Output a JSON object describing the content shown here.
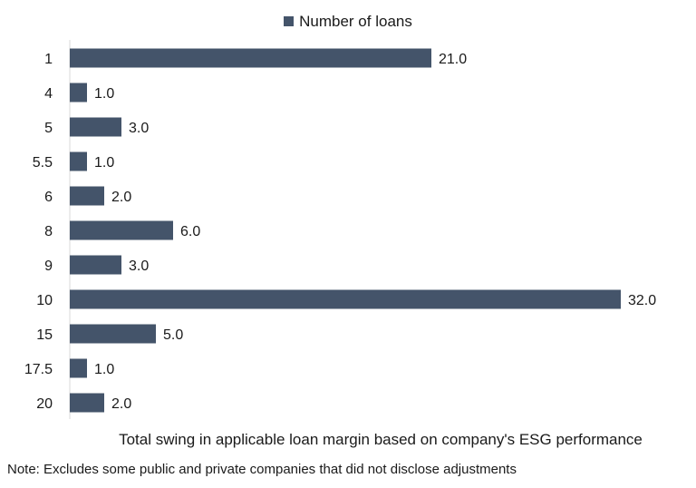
{
  "colors": {
    "bar": "#44546a",
    "axis": "#d9d9d9",
    "text": "#1a1a1a"
  },
  "chart_data": {
    "type": "bar",
    "orientation": "horizontal",
    "categories": [
      "1",
      "4",
      "5",
      "5.5",
      "6",
      "8",
      "9",
      "10",
      "15",
      "17.5",
      "20"
    ],
    "series": [
      {
        "name": "Number of loans",
        "values": [
          21,
          1,
          3,
          1,
          2,
          6,
          3,
          32,
          5,
          1,
          2
        ],
        "labels": [
          "21.0",
          "1.0",
          "3.0",
          "1.0",
          "2.0",
          "6.0",
          "3.0",
          "32.0",
          "5.0",
          "1.0",
          "2.0"
        ]
      }
    ],
    "title": "",
    "xlabel": "Total swing in applicable loan margin based on company's ESG performance",
    "ylabel": "",
    "xlim": [
      0,
      32
    ],
    "grid": false,
    "legend_position": "top-center",
    "note": "Note: Excludes some public and private companies that did not disclose adjustments"
  }
}
